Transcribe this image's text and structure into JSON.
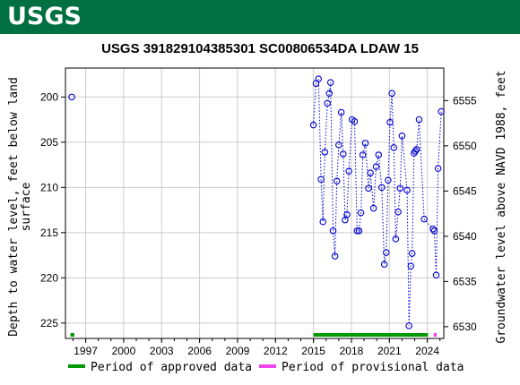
{
  "header": {
    "logo_text": "USGS",
    "color": "#006f41"
  },
  "chart_data": {
    "type": "scatter",
    "title": "USGS 391829104385301 SC00806534DA LDAW 15",
    "ylabel": "Depth to water level, feet below land surface",
    "ylabel_lines": [
      "Depth to water level, feet below land",
      "surface"
    ],
    "y2label": "Groundwater level above NAVD 1988, feet",
    "x_ticks": [
      "1997",
      "2000",
      "2003",
      "2006",
      "2009",
      "2012",
      "2015",
      "2018",
      "2021",
      "2024"
    ],
    "y_ticks": [
      200,
      205,
      210,
      215,
      220,
      225
    ],
    "y2_ticks": [
      6555,
      6550,
      6545,
      6540,
      6535,
      6530
    ],
    "xlim": [
      1995.4,
      2025.3
    ],
    "ylim": [
      226.7,
      196.8
    ],
    "y2_offset": 6755.4,
    "grid": true,
    "series_color": "#0000cc",
    "points": [
      [
        1995.9,
        200.0
      ],
      [
        2015.0,
        203.1
      ],
      [
        2015.2,
        198.5
      ],
      [
        2015.4,
        198.0
      ],
      [
        2015.6,
        209.1
      ],
      [
        2015.75,
        213.8
      ],
      [
        2015.9,
        206.1
      ],
      [
        2016.1,
        200.7
      ],
      [
        2016.25,
        199.6
      ],
      [
        2016.35,
        198.4
      ],
      [
        2016.55,
        214.8
      ],
      [
        2016.7,
        217.6
      ],
      [
        2016.85,
        209.3
      ],
      [
        2017.0,
        205.3
      ],
      [
        2017.2,
        201.7
      ],
      [
        2017.35,
        206.3
      ],
      [
        2017.5,
        213.6
      ],
      [
        2017.65,
        213.0
      ],
      [
        2017.8,
        208.2
      ],
      [
        2018.05,
        202.5
      ],
      [
        2018.25,
        202.7
      ],
      [
        2018.45,
        214.8
      ],
      [
        2018.6,
        214.8
      ],
      [
        2018.75,
        212.8
      ],
      [
        2018.9,
        206.4
      ],
      [
        2019.1,
        205.1
      ],
      [
        2019.35,
        210.1
      ],
      [
        2019.5,
        208.4
      ],
      [
        2019.75,
        212.3
      ],
      [
        2019.95,
        207.7
      ],
      [
        2020.15,
        206.4
      ],
      [
        2020.4,
        210.0
      ],
      [
        2020.6,
        218.5
      ],
      [
        2020.75,
        217.2
      ],
      [
        2020.9,
        209.2
      ],
      [
        2021.05,
        202.8
      ],
      [
        2021.2,
        199.6
      ],
      [
        2021.35,
        205.6
      ],
      [
        2021.5,
        215.7
      ],
      [
        2021.7,
        212.7
      ],
      [
        2021.85,
        210.1
      ],
      [
        2022.0,
        204.3
      ],
      [
        2022.4,
        210.3
      ],
      [
        2022.55,
        225.3
      ],
      [
        2022.7,
        218.7
      ],
      [
        2022.8,
        217.3
      ],
      [
        2022.95,
        206.2
      ],
      [
        2023.05,
        206.0
      ],
      [
        2023.15,
        205.8
      ],
      [
        2023.35,
        202.5
      ],
      [
        2023.75,
        213.5
      ],
      [
        2024.45,
        214.6
      ],
      [
        2024.55,
        214.8
      ],
      [
        2024.7,
        219.7
      ],
      [
        2024.85,
        207.9
      ],
      [
        2025.1,
        201.6
      ]
    ],
    "approved_periods": [
      [
        1995.8,
        1996.1
      ],
      [
        2015.0,
        2024.05
      ]
    ],
    "provisional_periods": [
      [
        2024.5,
        2025.4
      ]
    ],
    "approved_color": "#009900",
    "provisional_color": "#ee44ee",
    "legend": {
      "approved": "Period of approved data",
      "provisional": "Period of provisional data",
      "placement": "bottom"
    }
  }
}
